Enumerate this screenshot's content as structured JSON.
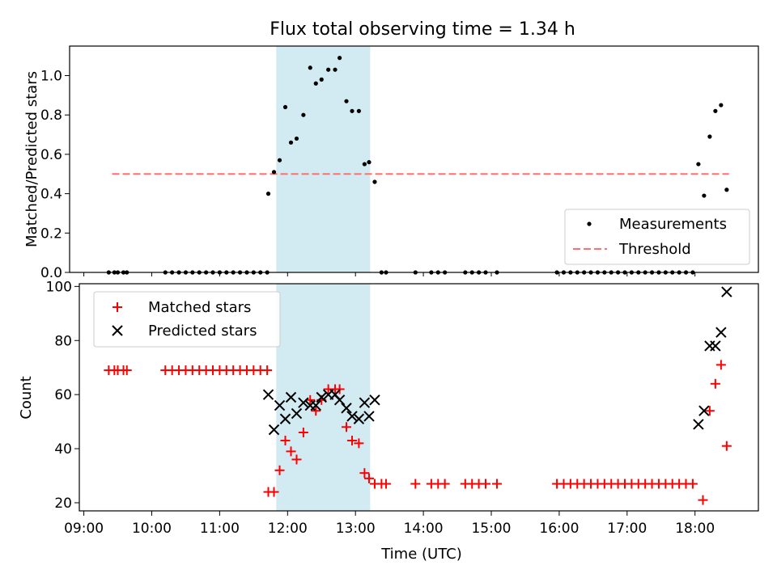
{
  "title": "Flux total observing time = 1.34 h",
  "chart_data": [
    {
      "type": "scatter",
      "ylabel": "Matched/Predicted stars",
      "ylim": [
        0,
        1.15
      ],
      "yticks": [
        0.0,
        0.2,
        0.4,
        0.6,
        0.8,
        1.0
      ],
      "ytick_labels": [
        "0.0",
        "0.2",
        "0.4",
        "0.6",
        "0.8",
        "1.0"
      ],
      "shaded_region": {
        "x_start": "11:50",
        "x_end": "13:13",
        "color": "#add8e6"
      },
      "threshold": {
        "value": 0.5,
        "x_start": "09:25",
        "x_end": "18:30",
        "color": "#ff6f6f"
      },
      "legend": {
        "position": "bottom-right",
        "entries": [
          "Measurements",
          "Threshold"
        ]
      },
      "series": [
        {
          "name": "Measurements",
          "color": "#000000",
          "points": [
            [
              "09:22",
              0
            ],
            [
              "09:27",
              0
            ],
            [
              "09:30",
              0
            ],
            [
              "09:35",
              0
            ],
            [
              "09:38",
              0
            ],
            [
              "10:12",
              0
            ],
            [
              "10:18",
              0
            ],
            [
              "10:24",
              0
            ],
            [
              "10:30",
              0
            ],
            [
              "10:36",
              0
            ],
            [
              "10:42",
              0
            ],
            [
              "10:48",
              0
            ],
            [
              "10:54",
              0
            ],
            [
              "11:00",
              0
            ],
            [
              "11:06",
              0
            ],
            [
              "11:12",
              0
            ],
            [
              "11:18",
              0
            ],
            [
              "11:24",
              0
            ],
            [
              "11:30",
              0
            ],
            [
              "11:36",
              0
            ],
            [
              "11:42",
              0
            ],
            [
              "11:43",
              0.4
            ],
            [
              "11:48",
              0.51
            ],
            [
              "11:53",
              0.57
            ],
            [
              "11:58",
              0.84
            ],
            [
              "12:03",
              0.66
            ],
            [
              "12:08",
              0.68
            ],
            [
              "12:14",
              0.8
            ],
            [
              "12:20",
              1.04
            ],
            [
              "12:25",
              0.96
            ],
            [
              "12:30",
              0.98
            ],
            [
              "12:36",
              1.03
            ],
            [
              "12:42",
              1.03
            ],
            [
              "12:46",
              1.09
            ],
            [
              "12:52",
              0.87
            ],
            [
              "12:57",
              0.82
            ],
            [
              "13:03",
              0.82
            ],
            [
              "13:08",
              0.55
            ],
            [
              "13:12",
              0.56
            ],
            [
              "13:17",
              0.46
            ],
            [
              "13:23",
              0
            ],
            [
              "13:27",
              0
            ],
            [
              "13:53",
              0
            ],
            [
              "14:07",
              0
            ],
            [
              "14:13",
              0
            ],
            [
              "14:19",
              0
            ],
            [
              "14:37",
              0
            ],
            [
              "14:43",
              0
            ],
            [
              "14:49",
              0
            ],
            [
              "14:55",
              0
            ],
            [
              "15:05",
              0
            ],
            [
              "15:58",
              0
            ],
            [
              "16:04",
              0
            ],
            [
              "16:10",
              0
            ],
            [
              "16:16",
              0
            ],
            [
              "16:22",
              0
            ],
            [
              "16:28",
              0
            ],
            [
              "16:34",
              0
            ],
            [
              "16:40",
              0
            ],
            [
              "16:46",
              0
            ],
            [
              "16:52",
              0
            ],
            [
              "16:58",
              0
            ],
            [
              "17:04",
              0
            ],
            [
              "17:10",
              0
            ],
            [
              "17:16",
              0
            ],
            [
              "17:22",
              0
            ],
            [
              "17:28",
              0
            ],
            [
              "17:34",
              0
            ],
            [
              "17:40",
              0
            ],
            [
              "17:46",
              0
            ],
            [
              "17:52",
              0
            ],
            [
              "17:58",
              0
            ],
            [
              "18:03",
              0.55
            ],
            [
              "18:08",
              0.39
            ],
            [
              "18:13",
              0.69
            ],
            [
              "18:18",
              0.82
            ],
            [
              "18:23",
              0.85
            ],
            [
              "18:28",
              0.42
            ]
          ]
        }
      ]
    },
    {
      "type": "scatter",
      "xlabel": "Time (UTC)",
      "ylabel": "Count",
      "ylim": [
        17,
        101
      ],
      "yticks": [
        20,
        40,
        60,
        80,
        100
      ],
      "ytick_labels": [
        "20",
        "40",
        "60",
        "80",
        "100"
      ],
      "xlim": [
        "08:56",
        "18:56"
      ],
      "xticks": [
        "09:00",
        "10:00",
        "11:00",
        "12:00",
        "13:00",
        "14:00",
        "15:00",
        "16:00",
        "17:00",
        "18:00"
      ],
      "xtick_labels": [
        "09:00",
        "10:00",
        "11:00",
        "12:00",
        "13:00",
        "14:00",
        "15:00",
        "16:00",
        "17:00",
        "18:00"
      ],
      "shaded_region": {
        "x_start": "11:50",
        "x_end": "13:13",
        "color": "#add8e6"
      },
      "legend": {
        "position": "top-left",
        "entries": [
          "Matched stars",
          "Predicted stars"
        ]
      },
      "series": [
        {
          "name": "Matched stars",
          "color": "#ff0000",
          "marker": "plus",
          "points": [
            [
              "09:22",
              69
            ],
            [
              "09:27",
              69
            ],
            [
              "09:30",
              69
            ],
            [
              "09:35",
              69
            ],
            [
              "09:38",
              69
            ],
            [
              "10:12",
              69
            ],
            [
              "10:18",
              69
            ],
            [
              "10:24",
              69
            ],
            [
              "10:30",
              69
            ],
            [
              "10:36",
              69
            ],
            [
              "10:42",
              69
            ],
            [
              "10:48",
              69
            ],
            [
              "10:54",
              69
            ],
            [
              "11:00",
              69
            ],
            [
              "11:06",
              69
            ],
            [
              "11:12",
              69
            ],
            [
              "11:18",
              69
            ],
            [
              "11:24",
              69
            ],
            [
              "11:30",
              69
            ],
            [
              "11:36",
              69
            ],
            [
              "11:42",
              69
            ],
            [
              "11:43",
              24
            ],
            [
              "11:48",
              24
            ],
            [
              "11:53",
              32
            ],
            [
              "11:58",
              43
            ],
            [
              "12:03",
              39
            ],
            [
              "12:08",
              36
            ],
            [
              "12:14",
              46
            ],
            [
              "12:20",
              58
            ],
            [
              "12:25",
              54
            ],
            [
              "12:30",
              58
            ],
            [
              "12:36",
              62
            ],
            [
              "12:42",
              62
            ],
            [
              "12:46",
              62
            ],
            [
              "12:52",
              48
            ],
            [
              "12:57",
              43
            ],
            [
              "13:03",
              42
            ],
            [
              "13:08",
              31
            ],
            [
              "13:12",
              29
            ],
            [
              "13:17",
              27
            ],
            [
              "13:23",
              27
            ],
            [
              "13:27",
              27
            ],
            [
              "13:53",
              27
            ],
            [
              "14:07",
              27
            ],
            [
              "14:13",
              27
            ],
            [
              "14:19",
              27
            ],
            [
              "14:37",
              27
            ],
            [
              "14:43",
              27
            ],
            [
              "14:49",
              27
            ],
            [
              "14:55",
              27
            ],
            [
              "15:05",
              27
            ],
            [
              "15:58",
              27
            ],
            [
              "16:04",
              27
            ],
            [
              "16:10",
              27
            ],
            [
              "16:16",
              27
            ],
            [
              "16:22",
              27
            ],
            [
              "16:28",
              27
            ],
            [
              "16:34",
              27
            ],
            [
              "16:40",
              27
            ],
            [
              "16:46",
              27
            ],
            [
              "16:52",
              27
            ],
            [
              "16:58",
              27
            ],
            [
              "17:04",
              27
            ],
            [
              "17:10",
              27
            ],
            [
              "17:16",
              27
            ],
            [
              "17:22",
              27
            ],
            [
              "17:28",
              27
            ],
            [
              "17:34",
              27
            ],
            [
              "17:40",
              27
            ],
            [
              "17:46",
              27
            ],
            [
              "17:52",
              27
            ],
            [
              "17:58",
              27
            ],
            [
              "18:07",
              21
            ],
            [
              "18:13",
              54
            ],
            [
              "18:18",
              64
            ],
            [
              "18:23",
              71
            ],
            [
              "18:28",
              41
            ]
          ]
        },
        {
          "name": "Predicted stars",
          "color": "#000000",
          "marker": "x",
          "points": [
            [
              "11:43",
              60
            ],
            [
              "11:48",
              47
            ],
            [
              "11:53",
              56
            ],
            [
              "11:58",
              51
            ],
            [
              "12:03",
              59
            ],
            [
              "12:08",
              53
            ],
            [
              "12:14",
              57
            ],
            [
              "12:20",
              56
            ],
            [
              "12:25",
              56
            ],
            [
              "12:30",
              59
            ],
            [
              "12:36",
              60
            ],
            [
              "12:42",
              60
            ],
            [
              "12:46",
              58
            ],
            [
              "12:52",
              55
            ],
            [
              "12:57",
              52
            ],
            [
              "13:03",
              51
            ],
            [
              "13:08",
              57
            ],
            [
              "13:12",
              52
            ],
            [
              "13:17",
              58
            ],
            [
              "18:03",
              49
            ],
            [
              "18:08",
              54
            ],
            [
              "18:13",
              78
            ],
            [
              "18:18",
              78
            ],
            [
              "18:23",
              83
            ],
            [
              "18:28",
              98
            ]
          ]
        }
      ]
    }
  ]
}
